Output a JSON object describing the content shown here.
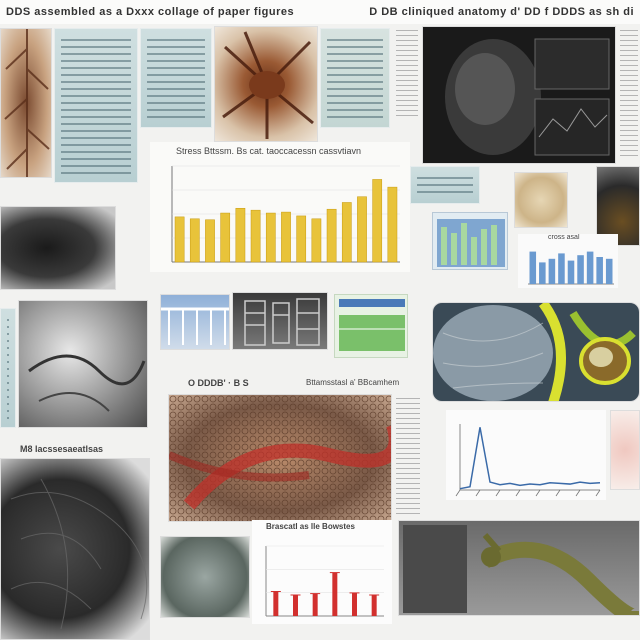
{
  "header": {
    "title": "DDS assembled as a Dxxx collage of paper figures",
    "title_right": "D DB cliniqued anatomy d' DD f DDDS as sh di"
  },
  "captions": {
    "bar_chart_title": "Stress Bttssm. Bs cat. taoccacessn cassvtiavn",
    "small_label_left": "O DDDB' · B S",
    "small_label_mid": "Bttamsstasl a' BBcamhem",
    "small_label_bottom": "M8 lacssesaeatlsas",
    "small_chart_title": "cross asal",
    "lower_chart_title": "Brascatl as lle Bowstes"
  },
  "colors": {
    "bar": "#e8c33a",
    "bar_edge": "#c79a10",
    "line_chart": "#3a6aa8",
    "red_bar": "#d2302e",
    "page": "#f2f2f0"
  },
  "chart_data": [
    {
      "type": "bar",
      "title": "Stress Bttssm. Bs cat. taoccacessn cassvtiavn",
      "values": [
        0.47,
        0.45,
        0.44,
        0.51,
        0.56,
        0.54,
        0.51,
        0.52,
        0.48,
        0.45,
        0.55,
        0.62,
        0.68,
        0.86,
        0.78
      ]
    },
    {
      "type": "line",
      "title": "",
      "x": [
        0,
        1,
        2,
        3,
        4,
        5,
        6,
        7,
        8,
        9,
        10,
        11,
        12,
        13,
        14
      ],
      "values": [
        0.02,
        0.05,
        0.95,
        0.12,
        0.08,
        0.1,
        0.07,
        0.09,
        0.08,
        0.11,
        0.1,
        0.09,
        0.12,
        0.1,
        0.11
      ]
    },
    {
      "type": "bar",
      "title": "Brascatl as lle Bowstes",
      "values": [
        0.35,
        0.3,
        0.32,
        0.62,
        0.33,
        0.3
      ]
    },
    {
      "type": "bar",
      "title": "cross asal",
      "values": [
        0.9,
        0.6,
        0.7,
        0.85,
        0.65,
        0.8,
        0.9,
        0.75,
        0.7
      ]
    }
  ]
}
